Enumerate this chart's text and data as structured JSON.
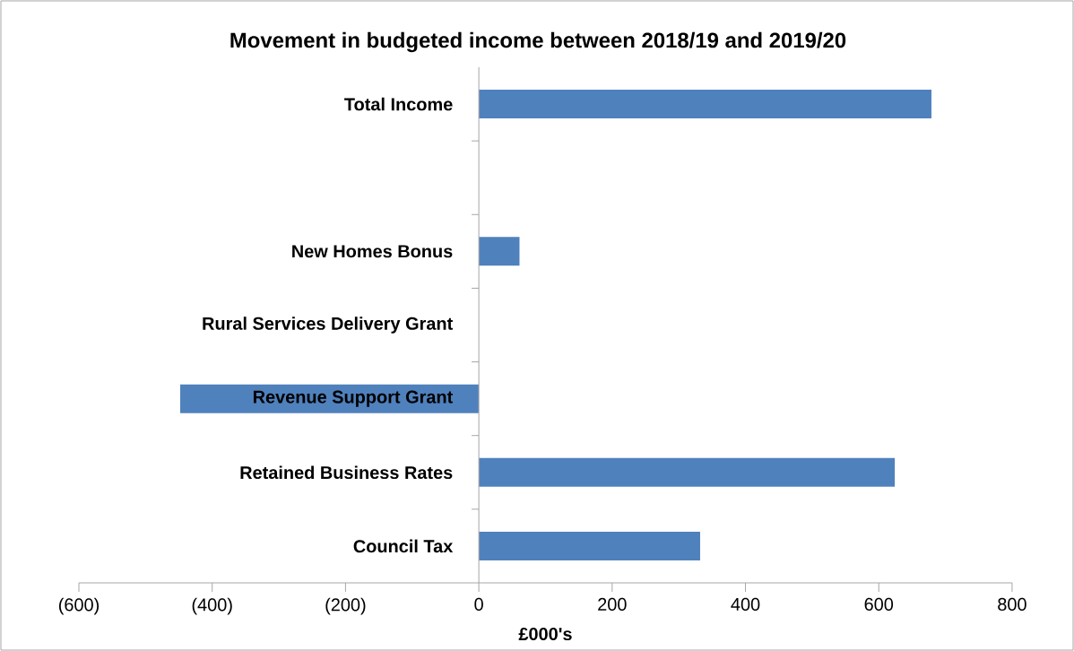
{
  "chart_data": {
    "type": "bar",
    "orientation": "horizontal",
    "title": "Movement in budgeted income between 2018/19 and 2019/20",
    "xlabel": "£000's",
    "categories": [
      "Total Income",
      null,
      "New Homes Bonus",
      "Rural Services Delivery Grant",
      "Revenue Support Grant",
      "Retained Business Rates",
      "Council Tax"
    ],
    "values": [
      679,
      null,
      61,
      null,
      -448,
      624,
      332
    ],
    "color": "#4f81bd",
    "xlim": [
      -600,
      800
    ],
    "xticks": [
      {
        "value": -600,
        "label": "(600)"
      },
      {
        "value": -400,
        "label": "(400)"
      },
      {
        "value": -200,
        "label": "(200)"
      },
      0,
      200,
      400,
      600,
      800
    ]
  }
}
